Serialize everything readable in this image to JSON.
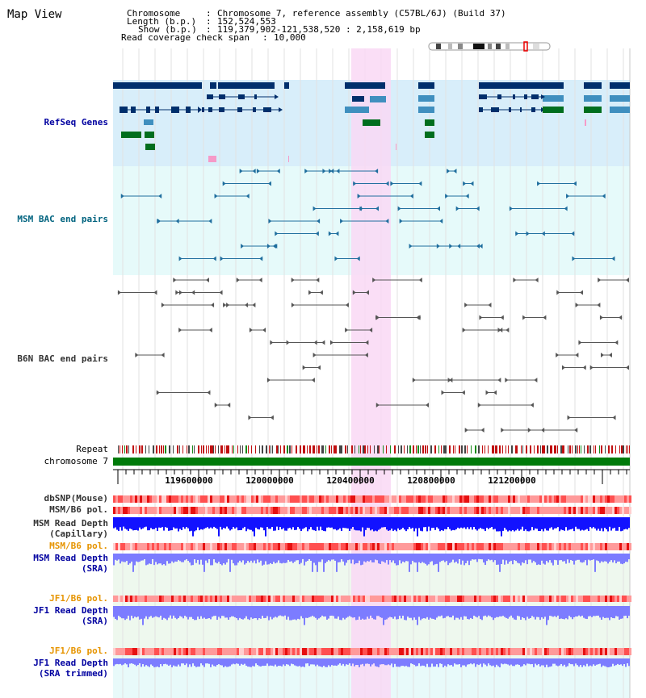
{
  "title": "Map View",
  "info": {
    "chromosome_key": "Chromosome",
    "chromosome_val": "Chromosome 7, reference assembly (C57BL/6J) (Build 37)",
    "length_key": "Length (b.p.)",
    "length_val": "152,524,553",
    "show_key": "Show (b.p.)",
    "show_val": "119,379,902-121,538,520 : 2,158,619 bp",
    "coverage_key": "Read coverage check span",
    "coverage_val": "10,000"
  },
  "tracks": {
    "refseq": "RefSeq Genes",
    "msm_bac": "MSM BAC end pairs",
    "b6n_bac": "B6N BAC end pairs",
    "repeat": "Repeat",
    "chromosome": "chromosome 7",
    "dbsnp": "dbSNP(Mouse)",
    "msm_b6_pol": "MSM/B6 pol.",
    "msm_depth_cap_1": "MSM Read Depth",
    "msm_depth_cap_2": "(Capillary)",
    "msm_b6_pol_2": "MSM/B6 pol.",
    "msm_depth_sra_1": "MSM Read Depth",
    "msm_depth_sra_2": "(SRA)",
    "jf1_b6_pol": "JF1/B6 pol.",
    "jf1_depth_sra_1": "JF1 Read Depth",
    "jf1_depth_sra_2": "(SRA)",
    "jf1_b6_pol_2": "JF1/B6 pol.",
    "jf1_depth_trim_1": "JF1 Read Depth",
    "jf1_depth_trim_2": "(SRA trimmed)"
  },
  "axis": {
    "ticks": [
      "119600000",
      "120000000",
      "120400000",
      "120800000",
      "121200000"
    ]
  },
  "colors": {
    "refseq_bg": "#d8eefa",
    "msm_bg": "#e6fafa",
    "highlight": "#f9d8f4",
    "gene_dark": "#002f6c",
    "gene_mid": "#3f8fbf",
    "gene_green": "#006e1e",
    "msm_line": "#1f6e9e",
    "b6n_line": "#555555",
    "label_blue": "#0000a0",
    "label_teal": "#00637f",
    "label_orange": "#e69400",
    "label_gray": "#333333",
    "chrom_green": "#007a0a",
    "depth_blue": "#1212ff",
    "depth_light": "#7c7cff"
  }
}
